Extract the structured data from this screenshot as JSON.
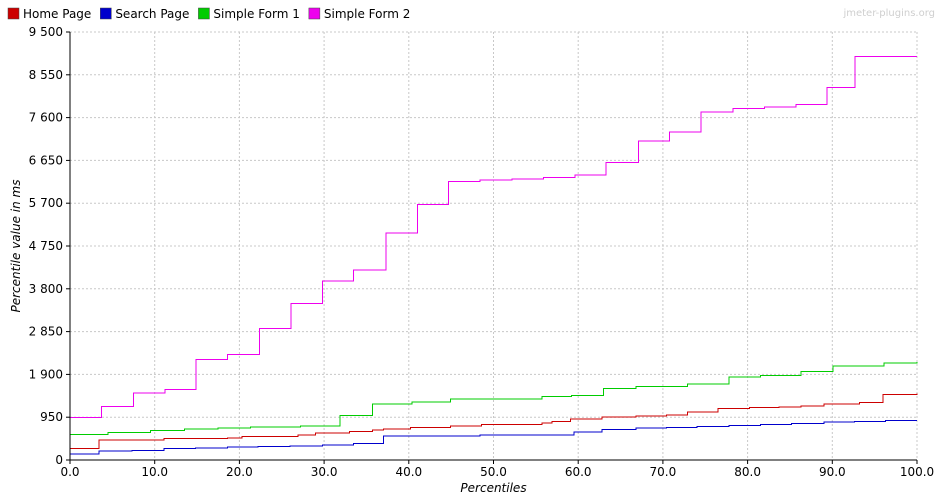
{
  "watermark": "jmeter-plugins.org",
  "chart_data": {
    "type": "line",
    "xlabel": "Percentiles",
    "ylabel": "Percentile value in ms",
    "xlim": [
      0,
      100
    ],
    "ylim": [
      0,
      9500
    ],
    "xticks": [
      0,
      10,
      20,
      30,
      40,
      50,
      60,
      70,
      80,
      90,
      100
    ],
    "xtick_labels": [
      "0.0",
      "10.0",
      "20.0",
      "30.0",
      "40.0",
      "50.0",
      "60.0",
      "70.0",
      "80.0",
      "90.0",
      "100.0"
    ],
    "yticks": [
      0,
      950,
      1900,
      2850,
      3800,
      4750,
      5700,
      6650,
      7600,
      8550,
      9500
    ],
    "ytick_labels": [
      "0",
      "950",
      "1 900",
      "2 850",
      "3 800",
      "4 750",
      "5 700",
      "6 650",
      "7 600",
      "8 550",
      "9 500"
    ],
    "grid": true,
    "legend_position": "top-left",
    "step": true,
    "series": [
      {
        "name": "Home Page",
        "color": "#cc0000",
        "x": [
          0,
          3.4,
          11.1,
          18.6,
          20.3,
          26.9,
          29.0,
          33.0,
          35.7,
          37.0,
          40.2,
          44.9,
          48.6,
          55.7,
          56.9,
          59.1,
          62.8,
          66.8,
          70.4,
          72.9,
          76.5,
          80.2,
          83.7,
          86.3,
          89.0,
          93.2,
          96.0,
          100
        ],
        "y": [
          255,
          445,
          480,
          490,
          520,
          560,
          595,
          635,
          665,
          690,
          720,
          760,
          790,
          820,
          850,
          905,
          950,
          975,
          1000,
          1060,
          1140,
          1160,
          1180,
          1200,
          1240,
          1280,
          1450,
          1480
        ]
      },
      {
        "name": "Search Page",
        "color": "#0000cc",
        "x": [
          0,
          3.4,
          7.3,
          11.1,
          14.8,
          18.6,
          22.2,
          26.0,
          29.8,
          33.5,
          37.0,
          48.4,
          59.5,
          62.8,
          66.8,
          70.4,
          74.0,
          77.8,
          81.5,
          85.2,
          89.0,
          92.6,
          96.3,
          100
        ],
        "y": [
          130,
          200,
          215,
          255,
          265,
          290,
          300,
          315,
          330,
          365,
          530,
          560,
          620,
          680,
          705,
          720,
          745,
          770,
          790,
          815,
          840,
          860,
          880,
          880
        ]
      },
      {
        "name": "Simple Form 1",
        "color": "#00cc00",
        "x": [
          0,
          4.5,
          9.5,
          13.5,
          17.5,
          21.3,
          27.2,
          31.9,
          35.7,
          40.4,
          44.9,
          55.7,
          59.2,
          63.0,
          66.8,
          72.9,
          77.8,
          81.5,
          86.3,
          90.1,
          96.1,
          100
        ],
        "y": [
          570,
          610,
          660,
          690,
          710,
          735,
          755,
          985,
          1245,
          1285,
          1350,
          1410,
          1430,
          1585,
          1630,
          1690,
          1840,
          1880,
          1960,
          2090,
          2150,
          2180
        ]
      },
      {
        "name": "Simple Form 2",
        "color": "#ee00ee",
        "x": [
          0,
          3.7,
          7.5,
          11.2,
          14.9,
          18.6,
          22.4,
          26.1,
          29.8,
          33.5,
          37.3,
          41.0,
          44.7,
          48.4,
          52.2,
          55.9,
          59.6,
          63.3,
          67.1,
          70.8,
          74.5,
          78.3,
          82.0,
          85.7,
          89.4,
          92.7,
          100
        ],
        "y": [
          940,
          1190,
          1490,
          1570,
          2230,
          2340,
          2920,
          3470,
          3970,
          4220,
          5040,
          5670,
          6180,
          6210,
          6240,
          6270,
          6330,
          6600,
          7080,
          7280,
          7720,
          7800,
          7840,
          7890,
          8270,
          8960,
          8960
        ]
      }
    ]
  }
}
